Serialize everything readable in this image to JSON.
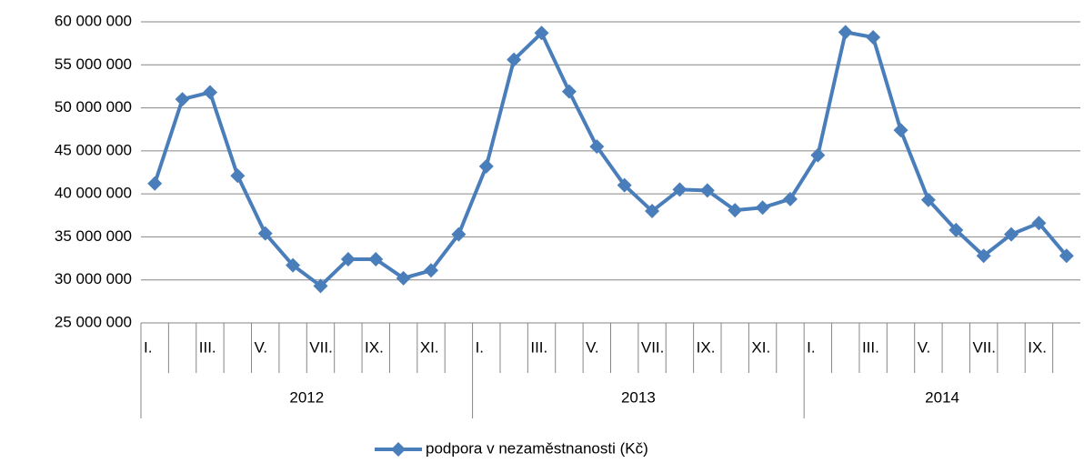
{
  "chart_data": {
    "type": "line",
    "groups": [
      {
        "label": "2012",
        "categories": [
          "I.",
          null,
          "III.",
          null,
          "V.",
          null,
          "VII.",
          null,
          "IX.",
          null,
          "XI.",
          null
        ]
      },
      {
        "label": "2013",
        "categories": [
          "I.",
          null,
          "III.",
          null,
          "V.",
          null,
          "VII.",
          null,
          "IX.",
          null,
          "XI.",
          null
        ]
      },
      {
        "label": "2014",
        "categories": [
          "I.",
          null,
          "III.",
          null,
          "V.",
          null,
          "VII.",
          null,
          "IX.",
          null
        ]
      }
    ],
    "series": [
      {
        "name": "podpora v nezaměstnanosti (Kč)",
        "color": "#4a7ebb",
        "values": [
          41200000,
          51000000,
          51800000,
          42100000,
          35400000,
          31700000,
          29300000,
          32400000,
          32400000,
          30200000,
          31100000,
          35300000,
          43200000,
          55600000,
          58700000,
          51900000,
          45500000,
          41000000,
          38000000,
          40500000,
          40400000,
          38100000,
          38400000,
          39400000,
          44500000,
          58800000,
          58200000,
          47400000,
          39300000,
          35800000,
          32800000,
          35300000,
          36600000,
          32800000
        ]
      }
    ],
    "ylim": [
      25000000,
      60000000
    ],
    "yticks": [
      {
        "value": 25000000,
        "label": "25 000 000"
      },
      {
        "value": 30000000,
        "label": "30 000 000"
      },
      {
        "value": 35000000,
        "label": "35 000 000"
      },
      {
        "value": 40000000,
        "label": "40 000 000"
      },
      {
        "value": 45000000,
        "label": "45 000 000"
      },
      {
        "value": 50000000,
        "label": "50 000 000"
      },
      {
        "value": 55000000,
        "label": "55 000 000"
      },
      {
        "value": 60000000,
        "label": "60 000 000"
      }
    ],
    "grid": true,
    "legend": "bottom"
  }
}
